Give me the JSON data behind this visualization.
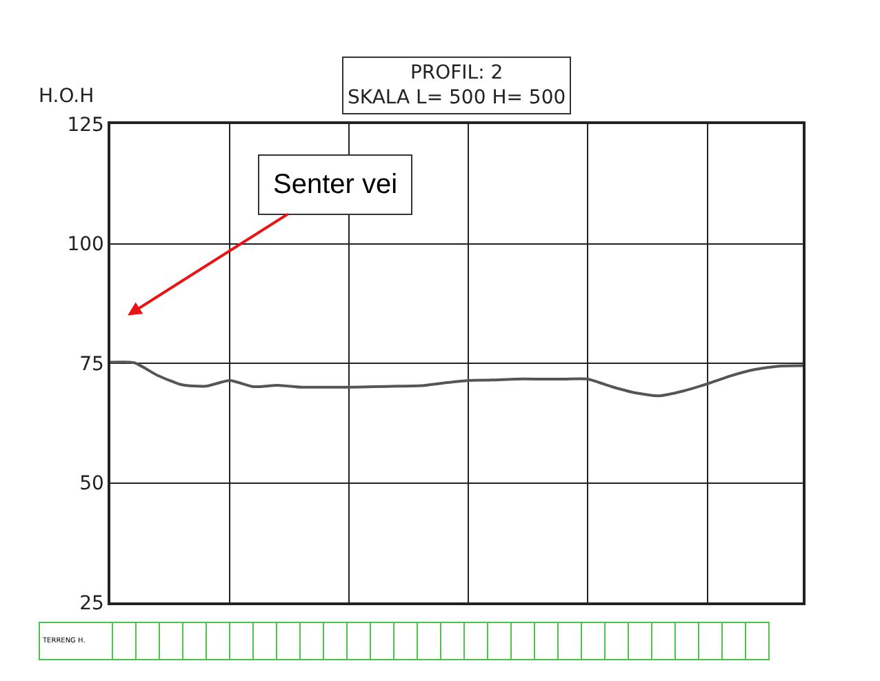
{
  "chart_data": {
    "type": "line",
    "title": "PROFIL: 2",
    "subtitle": "SKALA L= 500 H= 500",
    "ylabel": "H.O.H",
    "categories": [
      null,
      null,
      null,
      null,
      null,
      null,
      null,
      null,
      null,
      null,
      null,
      null,
      null,
      null,
      null,
      null,
      null,
      null,
      null,
      null,
      null,
      null,
      null,
      null,
      null,
      null,
      null,
      null,
      null,
      null
    ],
    "series": [
      {
        "color": "#555555",
        "values": [
          75.2,
          75.1,
          72.4,
          70.5,
          70.2,
          71.4,
          70.1,
          70.4,
          70.0,
          70.0,
          70.0,
          70.1,
          70.2,
          70.3,
          70.9,
          71.4,
          71.5,
          71.7,
          71.7,
          71.7,
          71.7,
          70.1,
          68.8,
          68.2,
          69.2,
          70.7,
          72.4,
          73.7,
          74.4,
          74.5
        ]
      }
    ],
    "ylim": [
      25,
      125
    ],
    "yticks": [
      25,
      50,
      75,
      100,
      125
    ],
    "grid": true,
    "tick_labels": "y",
    "marker": "none",
    "line_style": "solid",
    "annotations": [
      "Senter vei",
      "TERRENG H."
    ]
  }
}
